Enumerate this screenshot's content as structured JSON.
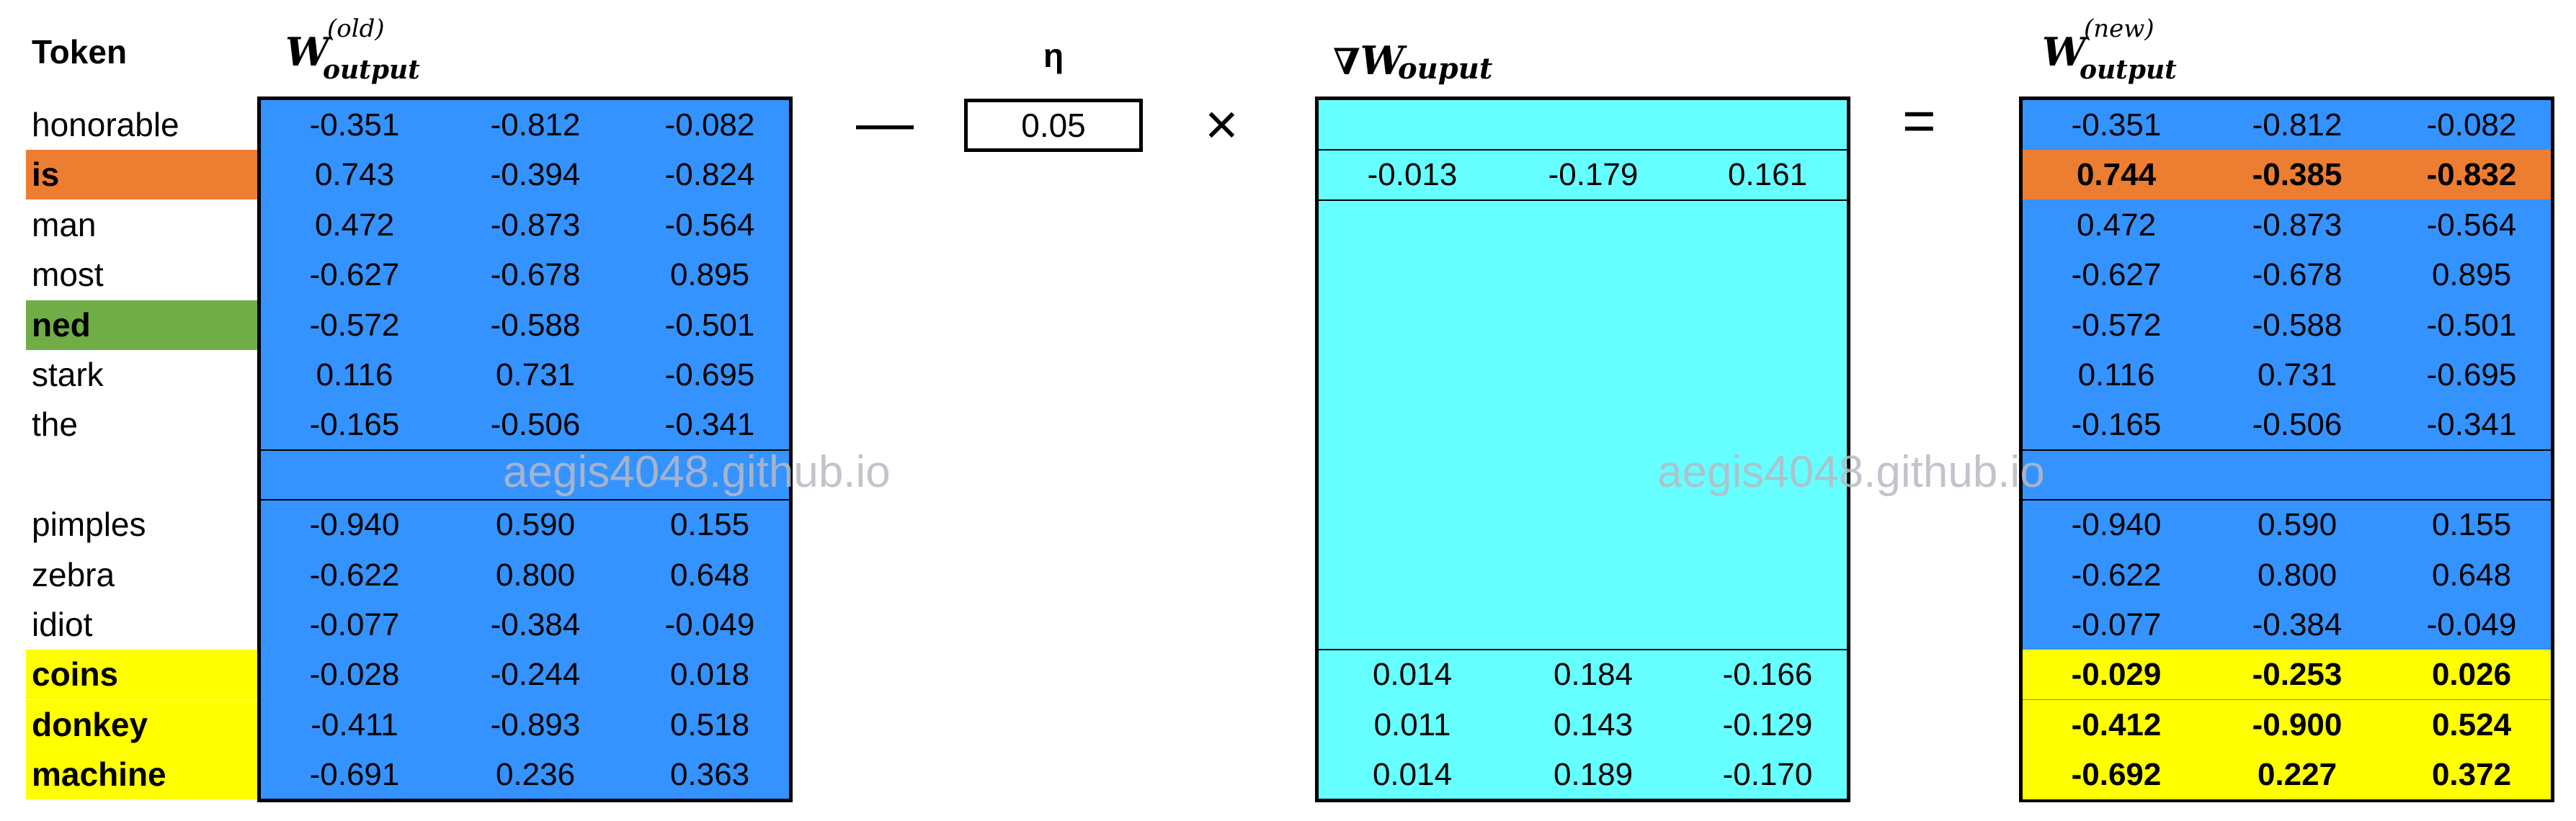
{
  "header": {
    "token": "Token",
    "eta": "η"
  },
  "labels": {
    "w_old": {
      "base": "W",
      "sup": "(old)",
      "sub": "output"
    },
    "grad": {
      "nabla": "∇",
      "base": "W",
      "sub": "ouput"
    },
    "w_new": {
      "base": "W",
      "sup": "(new)",
      "sub": "output"
    }
  },
  "operators": {
    "minus": "—",
    "times": "×",
    "equals": "="
  },
  "eta_value": "0.05",
  "watermark": "aegis4048.github.io",
  "colors": {
    "matrix_blue": "#3493FF",
    "grad_cyan": "#66FFFF",
    "orange": "#ED7D31",
    "green": "#70AD47",
    "yellow": "#FFFF00"
  },
  "tokens": [
    {
      "label": "honorable",
      "highlight": ""
    },
    {
      "label": "is",
      "highlight": "orange"
    },
    {
      "label": "man",
      "highlight": ""
    },
    {
      "label": "most",
      "highlight": ""
    },
    {
      "label": "ned",
      "highlight": "green"
    },
    {
      "label": "stark",
      "highlight": ""
    },
    {
      "label": "the",
      "highlight": ""
    },
    {
      "label": "",
      "highlight": ""
    },
    {
      "label": "pimples",
      "highlight": ""
    },
    {
      "label": "zebra",
      "highlight": ""
    },
    {
      "label": "idiot",
      "highlight": ""
    },
    {
      "label": "coins",
      "highlight": "yellow"
    },
    {
      "label": "donkey",
      "highlight": "yellow"
    },
    {
      "label": "machine",
      "highlight": "yellow"
    }
  ],
  "w_old": [
    [
      "-0.351",
      "-0.812",
      "-0.082"
    ],
    [
      "0.743",
      "-0.394",
      "-0.824"
    ],
    [
      "0.472",
      "-0.873",
      "-0.564"
    ],
    [
      "-0.627",
      "-0.678",
      "0.895"
    ],
    [
      "-0.572",
      "-0.588",
      "-0.501"
    ],
    [
      "0.116",
      "0.731",
      "-0.695"
    ],
    [
      "-0.165",
      "-0.506",
      "-0.341"
    ],
    [
      "",
      "",
      ""
    ],
    [
      "-0.940",
      "0.590",
      "0.155"
    ],
    [
      "-0.622",
      "0.800",
      "0.648"
    ],
    [
      "-0.077",
      "-0.384",
      "-0.049"
    ],
    [
      "-0.028",
      "-0.244",
      "0.018"
    ],
    [
      "-0.411",
      "-0.893",
      "0.518"
    ],
    [
      "-0.691",
      "0.236",
      "0.363"
    ]
  ],
  "grad": [
    [
      "",
      "",
      ""
    ],
    [
      "-0.013",
      "-0.179",
      "0.161"
    ],
    [
      "",
      "",
      ""
    ],
    [
      "",
      "",
      ""
    ],
    [
      "",
      "",
      ""
    ],
    [
      "",
      "",
      ""
    ],
    [
      "",
      "",
      ""
    ],
    [
      "",
      "",
      ""
    ],
    [
      "",
      "",
      ""
    ],
    [
      "",
      "",
      ""
    ],
    [
      "",
      "",
      ""
    ],
    [
      "0.014",
      "0.184",
      "-0.166"
    ],
    [
      "0.011",
      "0.143",
      "-0.129"
    ],
    [
      "0.014",
      "0.189",
      "-0.170"
    ]
  ],
  "w_new": [
    [
      "-0.351",
      "-0.812",
      "-0.082"
    ],
    [
      "0.744",
      "-0.385",
      "-0.832"
    ],
    [
      "0.472",
      "-0.873",
      "-0.564"
    ],
    [
      "-0.627",
      "-0.678",
      "0.895"
    ],
    [
      "-0.572",
      "-0.588",
      "-0.501"
    ],
    [
      "0.116",
      "0.731",
      "-0.695"
    ],
    [
      "-0.165",
      "-0.506",
      "-0.341"
    ],
    [
      "",
      "",
      ""
    ],
    [
      "-0.940",
      "0.590",
      "0.155"
    ],
    [
      "-0.622",
      "0.800",
      "0.648"
    ],
    [
      "-0.077",
      "-0.384",
      "-0.049"
    ],
    [
      "-0.029",
      "-0.253",
      "0.026"
    ],
    [
      "-0.412",
      "-0.900",
      "0.524"
    ],
    [
      "-0.692",
      "0.227",
      "0.372"
    ]
  ]
}
